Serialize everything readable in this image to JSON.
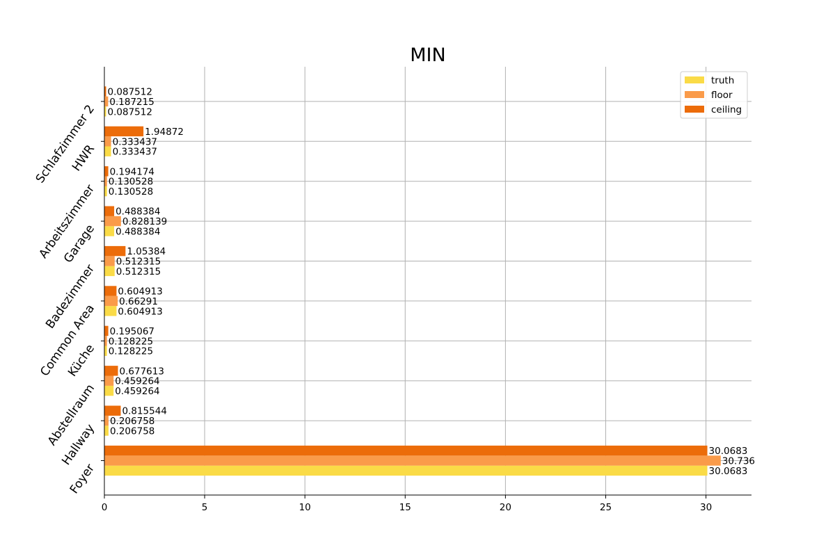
{
  "chart_data": {
    "type": "bar",
    "orientation": "horizontal",
    "title": "MIN",
    "xlabel": "",
    "ylabel": "",
    "xlim": [
      0,
      32.27
    ],
    "x_ticks": [
      0,
      5,
      10,
      15,
      20,
      25,
      30
    ],
    "grid": true,
    "legend_position": "top-right",
    "categories": [
      "Foyer",
      "Hallway",
      "Abstellraum",
      "Küche",
      "Common Area",
      "Badezimmer",
      "Garage",
      "Arbeitszimmer",
      "HWR",
      "Schlafzimmer 2"
    ],
    "series": [
      {
        "name": "truth",
        "color": "#fadb47",
        "values": [
          30.0683,
          0.206758,
          0.459264,
          0.128225,
          0.604913,
          0.512315,
          0.488384,
          0.130528,
          0.333437,
          0.087512
        ],
        "labels": [
          "30.0683",
          "0.206758",
          "0.459264",
          "0.128225",
          "0.604913",
          "0.512315",
          "0.488384",
          "0.130528",
          "0.333437",
          "0.087512"
        ]
      },
      {
        "name": "floor",
        "color": "#fa9b4a",
        "values": [
          30.736,
          0.206758,
          0.459264,
          0.128225,
          0.66291,
          0.512315,
          0.828139,
          0.130528,
          0.333437,
          0.187215
        ],
        "labels": [
          "30.736",
          "0.206758",
          "0.459264",
          "0.128225",
          "0.66291",
          "0.512315",
          "0.828139",
          "0.130528",
          "0.333437",
          "0.187215"
        ]
      },
      {
        "name": "ceiling",
        "color": "#ec6c0a",
        "values": [
          30.0683,
          0.815544,
          0.677613,
          0.195067,
          0.604913,
          1.05384,
          0.488384,
          0.194174,
          1.94872,
          0.087512
        ],
        "labels": [
          "30.0683",
          "0.815544",
          "0.677613",
          "0.195067",
          "0.604913",
          "1.05384",
          "0.488384",
          "0.194174",
          "1.94872",
          "0.087512"
        ]
      }
    ]
  }
}
